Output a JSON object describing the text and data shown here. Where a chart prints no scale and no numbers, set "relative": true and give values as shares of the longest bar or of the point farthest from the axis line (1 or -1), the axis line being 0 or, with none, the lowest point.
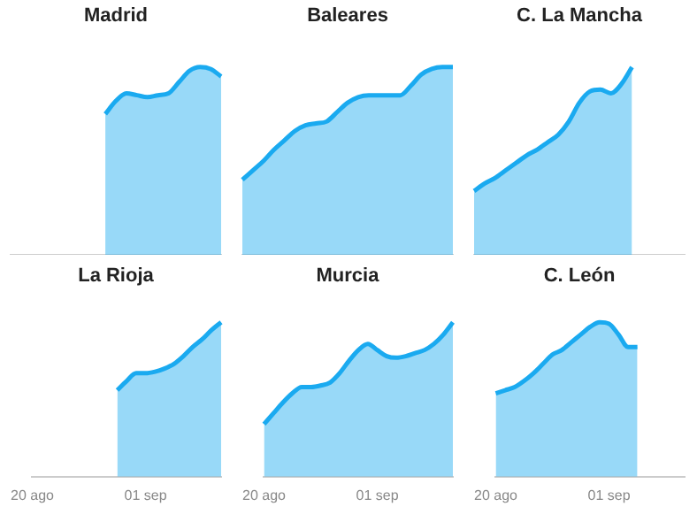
{
  "chart_data": [
    {
      "type": "area",
      "title": "Madrid",
      "relative": true,
      "grid": false,
      "legend": false,
      "categories": [
        null,
        null,
        null,
        null,
        null,
        null,
        null,
        null,
        null,
        null,
        null,
        null,
        null,
        null,
        null,
        null,
        null,
        null,
        null,
        null,
        null
      ],
      "series": [
        {
          "color": "#1aaaf0",
          "values": [
            null,
            null,
            null,
            null,
            null,
            null,
            null,
            null,
            null,
            0.75,
            0.82,
            0.86,
            0.85,
            0.84,
            0.85,
            0.86,
            0.92,
            0.98,
            1,
            0.99,
            0.95
          ]
        }
      ]
    },
    {
      "type": "area",
      "title": "Baleares",
      "relative": true,
      "grid": false,
      "legend": false,
      "categories": [
        null,
        null,
        null,
        null,
        null,
        null,
        null,
        null,
        null,
        null,
        null,
        null,
        null,
        null,
        null,
        null,
        null,
        null,
        null,
        null,
        null
      ],
      "series": [
        {
          "color": "#1aaaf0",
          "values": [
            0.4,
            0.45,
            0.5,
            0.56,
            0.61,
            0.66,
            0.69,
            0.7,
            0.71,
            0.76,
            0.81,
            0.84,
            0.85,
            0.85,
            0.85,
            0.85,
            0.9,
            0.96,
            0.99,
            1,
            1
          ]
        }
      ]
    },
    {
      "type": "area",
      "title": "C. La Mancha",
      "relative": true,
      "grid": false,
      "legend": false,
      "categories": [
        null,
        null,
        null,
        null,
        null,
        null,
        null,
        null,
        null,
        null,
        null,
        null,
        null,
        null,
        null,
        null,
        null,
        null,
        null,
        null,
        null
      ],
      "series": [
        {
          "color": "#1aaaf0",
          "values": [
            0.34,
            0.38,
            0.41,
            0.45,
            0.49,
            0.53,
            0.56,
            0.6,
            0.64,
            0.71,
            0.81,
            0.87,
            0.88,
            0.86,
            0.91,
            1,
            null,
            null,
            null,
            null,
            null
          ]
        }
      ]
    },
    {
      "type": "area",
      "title": "La Rioja",
      "relative": true,
      "grid": false,
      "legend": false,
      "categories": [
        "20 ago",
        null,
        null,
        null,
        null,
        null,
        null,
        null,
        null,
        null,
        null,
        null,
        "01 sep",
        null,
        null,
        null,
        null,
        null,
        null,
        null,
        null
      ],
      "series": [
        {
          "color": "#1aaaf0",
          "values": [
            null,
            null,
            null,
            null,
            null,
            null,
            null,
            null,
            null,
            0.56,
            0.62,
            0.67,
            0.67,
            0.68,
            0.7,
            0.73,
            0.78,
            0.84,
            0.89,
            0.95,
            1
          ]
        }
      ]
    },
    {
      "type": "area",
      "title": "Murcia",
      "relative": true,
      "grid": false,
      "legend": false,
      "categories": [
        "20 ago",
        null,
        null,
        null,
        null,
        null,
        null,
        null,
        null,
        null,
        null,
        null,
        "01 sep",
        null,
        null,
        null,
        null,
        null,
        null,
        null,
        null
      ],
      "series": [
        {
          "color": "#1aaaf0",
          "values": [
            0.34,
            0.41,
            0.48,
            0.54,
            0.58,
            0.58,
            0.59,
            0.61,
            0.67,
            0.75,
            0.82,
            0.86,
            0.82,
            0.78,
            0.77,
            0.78,
            0.8,
            0.82,
            0.86,
            0.92,
            1
          ]
        }
      ]
    },
    {
      "type": "area",
      "title": "C. León",
      "relative": true,
      "grid": false,
      "legend": false,
      "categories": [
        "20 ago",
        null,
        null,
        null,
        null,
        null,
        null,
        null,
        null,
        null,
        null,
        null,
        "01 sep",
        null,
        null,
        null,
        null,
        null,
        null,
        null,
        null
      ],
      "series": [
        {
          "color": "#1aaaf0",
          "values": [
            0.54,
            0.56,
            0.58,
            0.62,
            0.67,
            0.73,
            0.79,
            0.82,
            0.87,
            0.92,
            0.97,
            1,
            0.99,
            0.92,
            0.84,
            0.84,
            null,
            null,
            null,
            null,
            null
          ]
        }
      ]
    }
  ]
}
